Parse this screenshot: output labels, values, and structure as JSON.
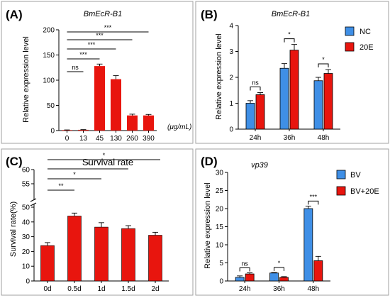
{
  "chart_data": [
    {
      "panel_label": "(A)",
      "type": "bar",
      "title": "BmEcR-B1",
      "ylabel": "Relative expression level",
      "categories": [
        "0",
        "13",
        "45",
        "130",
        "260",
        "390"
      ],
      "unit": "(μg/mL)",
      "values": [
        1,
        1.5,
        128,
        102,
        30,
        30
      ],
      "errors": [
        0.3,
        0.4,
        4,
        7,
        2.5,
        2
      ],
      "ylim": [
        0,
        200
      ],
      "yticks": [
        "0",
        "50",
        "100",
        "150",
        "200"
      ],
      "bar_color": "#e8150e",
      "significance": [
        {
          "from": "0",
          "to": "13",
          "label": "ns"
        },
        {
          "from": "0",
          "to": "45",
          "label": "***"
        },
        {
          "from": "0",
          "to": "130",
          "label": "***"
        },
        {
          "from": "0",
          "to": "260",
          "label": "***"
        },
        {
          "from": "0",
          "to": "390",
          "label": "***"
        }
      ]
    },
    {
      "panel_label": "(B)",
      "type": "bar",
      "title": "BmEcR-B1",
      "ylabel": "Relative expression level",
      "categories": [
        "24h",
        "36h",
        "48h"
      ],
      "ylim": [
        0,
        4
      ],
      "yticks": [
        "0",
        "1",
        "2",
        "3",
        "4"
      ],
      "series": [
        {
          "name": "NC",
          "color": "#3f8fe6",
          "values": [
            1.0,
            2.35,
            1.87
          ],
          "errors": [
            0.1,
            0.18,
            0.13
          ]
        },
        {
          "name": "20E",
          "color": "#e8150e",
          "values": [
            1.33,
            3.05,
            2.15
          ],
          "errors": [
            0.08,
            0.22,
            0.15
          ]
        }
      ],
      "significance": [
        "ns",
        "*",
        "*"
      ]
    },
    {
      "panel_label": "(C)",
      "type": "bar",
      "title": "Survival rate",
      "ylabel": "Survival rate(%)",
      "categories": [
        "0d",
        "0.5d",
        "1d",
        "1.5d",
        "2d"
      ],
      "values": [
        24,
        44,
        36.5,
        35.5,
        31
      ],
      "errors": [
        2,
        2,
        3,
        2,
        2
      ],
      "ylim": [
        0,
        60
      ],
      "axis_break": [
        50,
        51
      ],
      "yticks_lower": [
        "0",
        "10",
        "20",
        "30",
        "40",
        "50"
      ],
      "yticks_upper": [
        "55",
        "60"
      ],
      "bar_color": "#e8150e",
      "significance": [
        {
          "from": "0d",
          "to": "0.5d",
          "label": "**"
        },
        {
          "from": "0d",
          "to": "1d",
          "label": "*"
        },
        {
          "from": "0d",
          "to": "1.5d",
          "label": "*"
        },
        {
          "from": "0d",
          "to": "2d",
          "label": "*"
        }
      ]
    },
    {
      "panel_label": "(D)",
      "type": "bar",
      "title": "vp39",
      "ylabel": "Relative expression level",
      "categories": [
        "24h",
        "36h",
        "48h"
      ],
      "ylim": [
        0,
        30
      ],
      "yticks": [
        "0",
        "5",
        "10",
        "15",
        "20",
        "25",
        "30"
      ],
      "series": [
        {
          "name": "BV",
          "color": "#3f8fe6",
          "values": [
            1.0,
            2.2,
            20.0
          ],
          "errors": [
            0.4,
            0.15,
            0.7
          ]
        },
        {
          "name": "BV+20E",
          "color": "#e8150e",
          "values": [
            1.95,
            1.0,
            5.6
          ],
          "errors": [
            0.3,
            0.2,
            1.2
          ]
        }
      ],
      "significance": [
        "ns",
        "*",
        "***"
      ]
    }
  ]
}
